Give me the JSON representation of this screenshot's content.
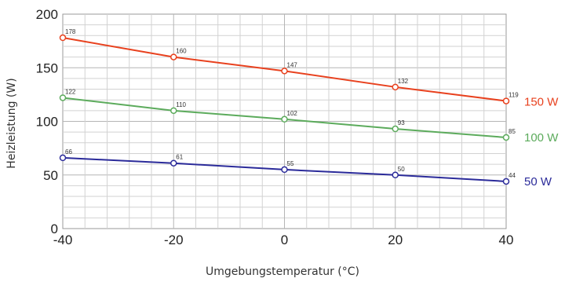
{
  "chart_data": {
    "type": "line",
    "title": "",
    "xlabel": "Umgebungstemperatur (°C)",
    "ylabel": "Heizleistung (W)",
    "x": [
      -40,
      -20,
      0,
      20,
      40
    ],
    "xlim": [
      -40,
      40
    ],
    "ylim": [
      0,
      200
    ],
    "xticks": [
      "-40",
      "-20",
      "0",
      "20",
      "40"
    ],
    "yticks": [
      "0",
      "50",
      "100",
      "150",
      "200"
    ],
    "grid": true,
    "legend": "right, next to line ends",
    "series": [
      {
        "name": "150 W",
        "color": "#e8411e",
        "values": [
          178,
          160,
          147,
          132,
          119
        ]
      },
      {
        "name": "100 W",
        "color": "#5cab5c",
        "values": [
          122,
          110,
          102,
          93,
          85
        ]
      },
      {
        "name": "50 W",
        "color": "#2b2b9a",
        "values": [
          66,
          61,
          55,
          50,
          44
        ]
      }
    ]
  }
}
